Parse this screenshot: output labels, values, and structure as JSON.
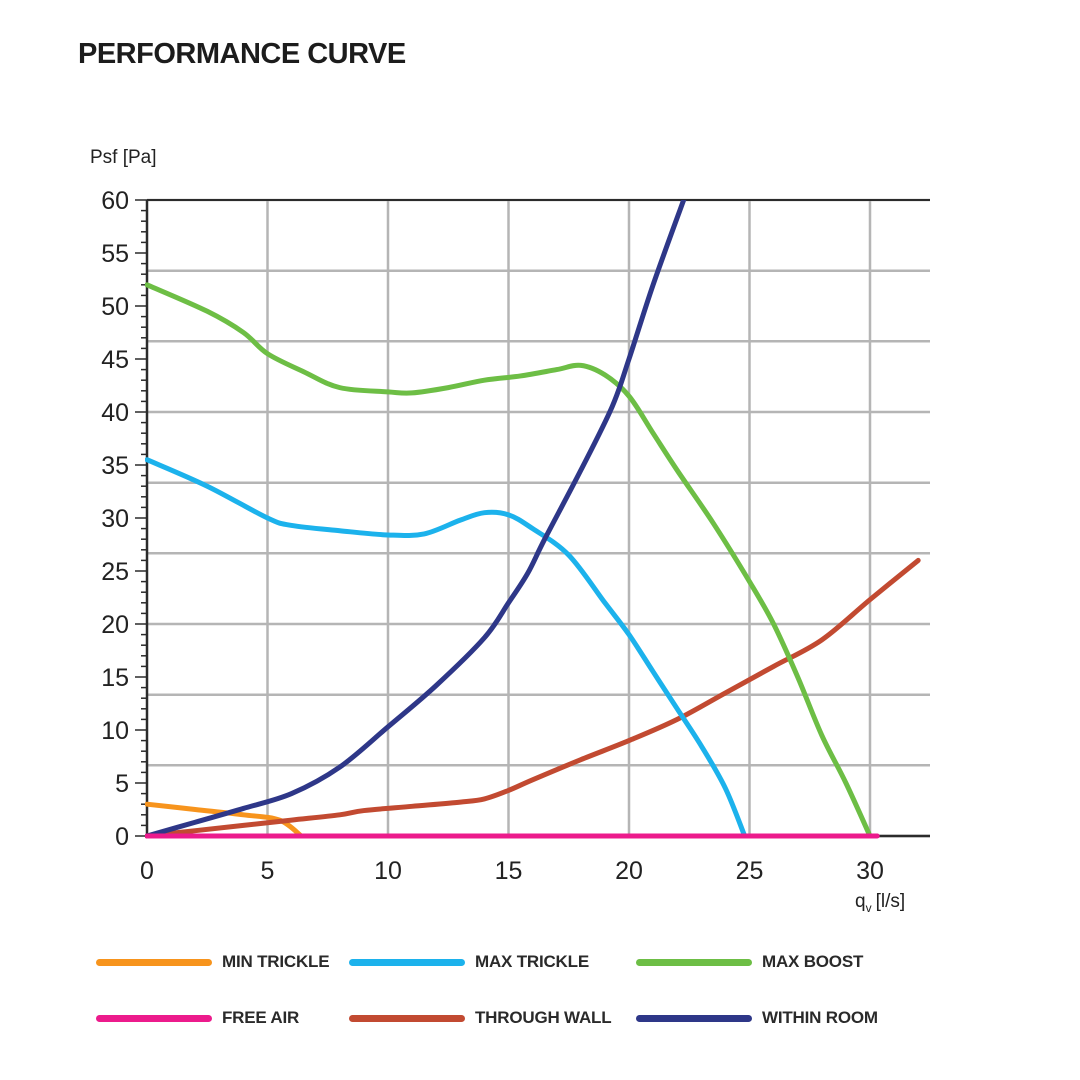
{
  "title": "PERFORMANCE CURVE",
  "chart_data": {
    "type": "line",
    "ylabel": "Psf [Pa]",
    "xlabel_main": "q",
    "xlabel_sub": "v",
    "xlabel_unit": "[l/s]",
    "xlim": [
      0,
      32
    ],
    "ylim": [
      0,
      60
    ],
    "x_ticks": [
      0,
      5,
      10,
      15,
      20,
      25,
      30
    ],
    "y_ticks": [
      0,
      5,
      10,
      15,
      20,
      25,
      30,
      35,
      40,
      45,
      50,
      55,
      60
    ],
    "grid": true,
    "legend_position": "bottom",
    "series": [
      {
        "name": "MIN TRICKLE",
        "color": "#f7941d",
        "x": [
          0,
          2,
          4,
          5.5,
          6.4
        ],
        "y": [
          3,
          2.5,
          2,
          1.5,
          0
        ]
      },
      {
        "name": "MAX TRICKLE",
        "color": "#1cb2ec",
        "x": [
          0,
          2.5,
          5,
          6,
          8,
          10,
          11.5,
          13,
          14,
          15,
          16,
          17.5,
          19,
          20,
          21,
          22,
          23,
          24,
          24.8
        ],
        "y": [
          35.5,
          33,
          30,
          29.3,
          28.8,
          28.4,
          28.5,
          29.8,
          30.5,
          30.3,
          29,
          26.5,
          22,
          19,
          15.5,
          12,
          8.5,
          4.5,
          0
        ]
      },
      {
        "name": "MAX BOOST",
        "color": "#6dbe45",
        "x": [
          0,
          2.5,
          4,
          5,
          6.5,
          8,
          10,
          11,
          12.5,
          14,
          15.5,
          17,
          18,
          19,
          20,
          21,
          22,
          23.5,
          25,
          26,
          27,
          28,
          29,
          30
        ],
        "y": [
          52,
          49.5,
          47.5,
          45.5,
          43.8,
          42.3,
          41.9,
          41.8,
          42.3,
          43,
          43.4,
          44,
          44.4,
          43.5,
          41.5,
          38,
          34.5,
          29.5,
          24,
          20,
          15,
          9.5,
          5,
          0
        ]
      },
      {
        "name": "FREE AIR",
        "color": "#ec1b8c",
        "x": [
          0,
          30.3
        ],
        "y": [
          0,
          0
        ]
      },
      {
        "name": "THROUGH WALL",
        "color": "#c24a31",
        "x": [
          0,
          2,
          4,
          6,
          8,
          9,
          11,
          13,
          14,
          15,
          16,
          18,
          20,
          22,
          24,
          26,
          28,
          30,
          32
        ],
        "y": [
          0,
          0.5,
          1,
          1.5,
          2,
          2.4,
          2.8,
          3.2,
          3.5,
          4.3,
          5.3,
          7.2,
          9,
          11,
          13.5,
          16,
          18.5,
          22.3,
          26
        ]
      },
      {
        "name": "WITHIN ROOM",
        "color": "#2e3788",
        "x": [
          0,
          2,
          4,
          6,
          8,
          10,
          12,
          14,
          15,
          15.8,
          16.5,
          18,
          19.3,
          20,
          21,
          22.3
        ],
        "y": [
          0,
          1.3,
          2.6,
          4,
          6.5,
          10.3,
          14.2,
          18.7,
          22,
          24.8,
          28,
          34.5,
          40.5,
          45,
          52,
          60.2
        ]
      }
    ]
  }
}
